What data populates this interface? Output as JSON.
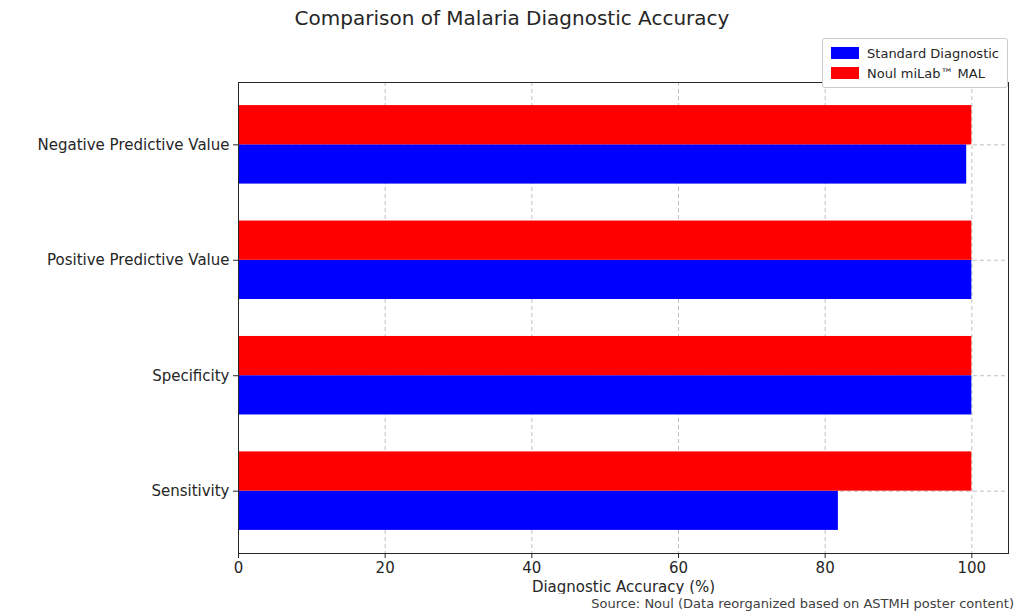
{
  "chart_data": {
    "type": "bar",
    "orientation": "horizontal",
    "title": "Comparison of Malaria Diagnostic Accuracy",
    "xlabel": "Diagnostic Accuracy (%)",
    "source": "Source: Noul (Data reorganized based on ASTMH poster content)",
    "categories": [
      "Negative Predictive Value",
      "Positive Predictive Value",
      "Specificity",
      "Sensitivity"
    ],
    "series": [
      {
        "name": "Standard Diagnostic",
        "color": "#0000ff",
        "values": [
          99.3,
          100,
          100,
          81.8
        ]
      },
      {
        "name": "Noul miLab™ MAL",
        "color": "#ff0000",
        "values": [
          100,
          100,
          100,
          100
        ]
      }
    ],
    "xlim": [
      0,
      105
    ],
    "xticks": [
      0,
      20,
      40,
      60,
      80,
      100
    ],
    "grid": true,
    "legend": "upper right"
  }
}
